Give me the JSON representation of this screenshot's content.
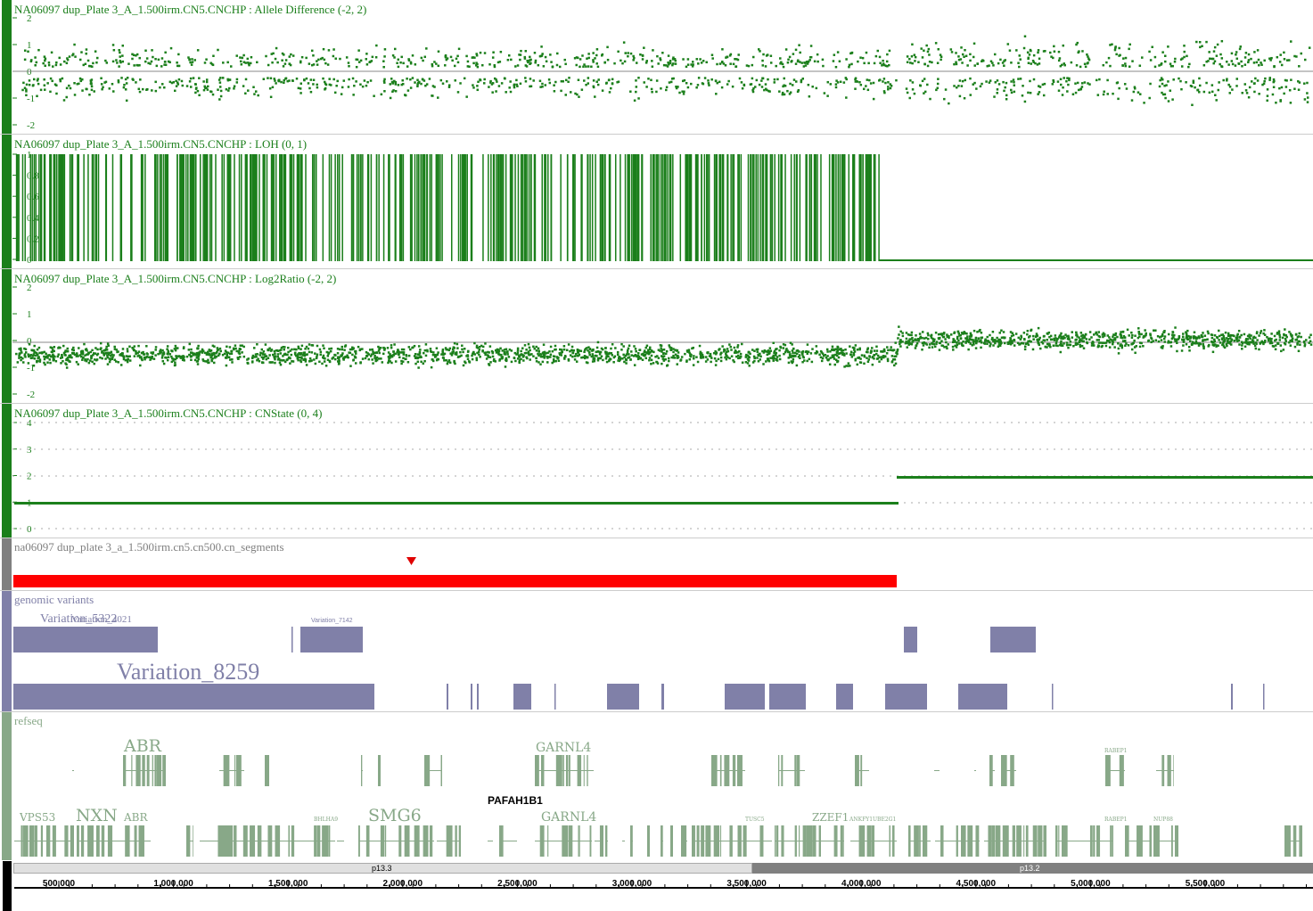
{
  "colors": {
    "sample_green": "#1b7f1b",
    "segment_gray": "#808080",
    "segment_red": "#ff0000",
    "variant_purple": "#8080a8",
    "refseq_green": "#88a888",
    "cytoband_light": "#e0e0e0",
    "cytoband_dark": "#808080"
  },
  "tracks": {
    "allele": {
      "title": "NA06097 dup_Plate 3_A_1.500irm.CN5.CNCHP : Allele Difference (-2, 2)",
      "ticks": [
        "2",
        "1",
        "0",
        "-1",
        "-2"
      ]
    },
    "loh": {
      "title": "NA06097 dup_Plate 3_A_1.500irm.CN5.CNCHP : LOH (0, 1)",
      "ticks": [
        "1",
        "0.8",
        "0.6",
        "0.4",
        "0.2",
        "0"
      ]
    },
    "log2": {
      "title": "NA06097 dup_Plate 3_A_1.500irm.CN5.CNCHP : Log2Ratio (-2, 2)",
      "ticks": [
        "2",
        "1",
        "0",
        "-1",
        "-2"
      ]
    },
    "cnstate": {
      "title": "NA06097 dup_Plate 3_A_1.500irm.CN5.CNCHP : CNState (0, 4)",
      "ticks": [
        "4",
        "3",
        "2",
        "1",
        "0"
      ]
    },
    "segments": {
      "title": "na06097 dup_plate 3_a_1.500irm.cn5.cn500.cn_segments"
    },
    "variants": {
      "title": "genomic variants",
      "labels": [
        "Variation_5322",
        "Variation_4021",
        "Variation_7142",
        "Variation_8259"
      ]
    },
    "refseq": {
      "title": "refseq",
      "labels_row1": [
        "ABR",
        "GARNL4",
        "RABEP1"
      ],
      "center_label": "PAFAH1B1",
      "labels_row2": [
        "VPS53",
        "NXN",
        "ABR",
        "BHLHA9",
        "SMG6",
        "GARNL4",
        "TUSC5",
        "ZZEF1",
        "ANKFY1",
        "UBE2G1",
        "RABEP1",
        "NUP88"
      ]
    }
  },
  "cytobands": [
    "p13.3",
    "p13.2"
  ],
  "ruler": {
    "labels": [
      "500,000",
      "1,000,000",
      "1,500,000",
      "2,000,000",
      "2,500,000",
      "3,000,000",
      "3,500,000",
      "4,000,000",
      "4,500,000",
      "5,000,000",
      "5,500,000",
      "6,0"
    ]
  }
}
